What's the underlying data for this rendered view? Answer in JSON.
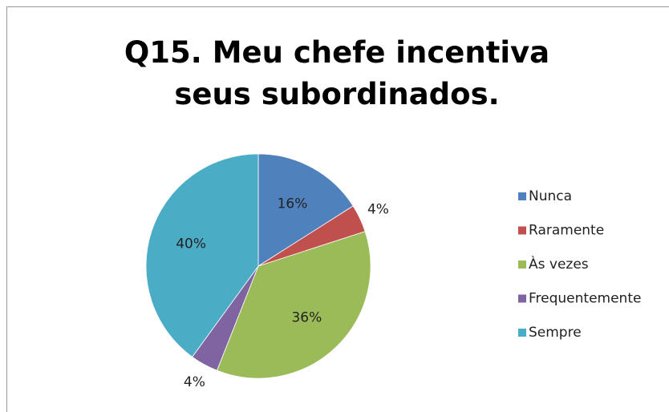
{
  "chart_data": {
    "type": "pie",
    "title": "Q15. Meu chefe incentiva seus subordinados.",
    "categories": [
      "Nunca",
      "Raramente",
      "Às vezes",
      "Frequentemente",
      "Sempre"
    ],
    "values": [
      16,
      4,
      36,
      4,
      40
    ],
    "value_labels": [
      "16%",
      "4%",
      "36%",
      "4%",
      "40%"
    ],
    "colors": [
      "#4f81bd",
      "#c0504d",
      "#9bbb59",
      "#8064a2",
      "#4bacc6"
    ],
    "legend": "right"
  }
}
